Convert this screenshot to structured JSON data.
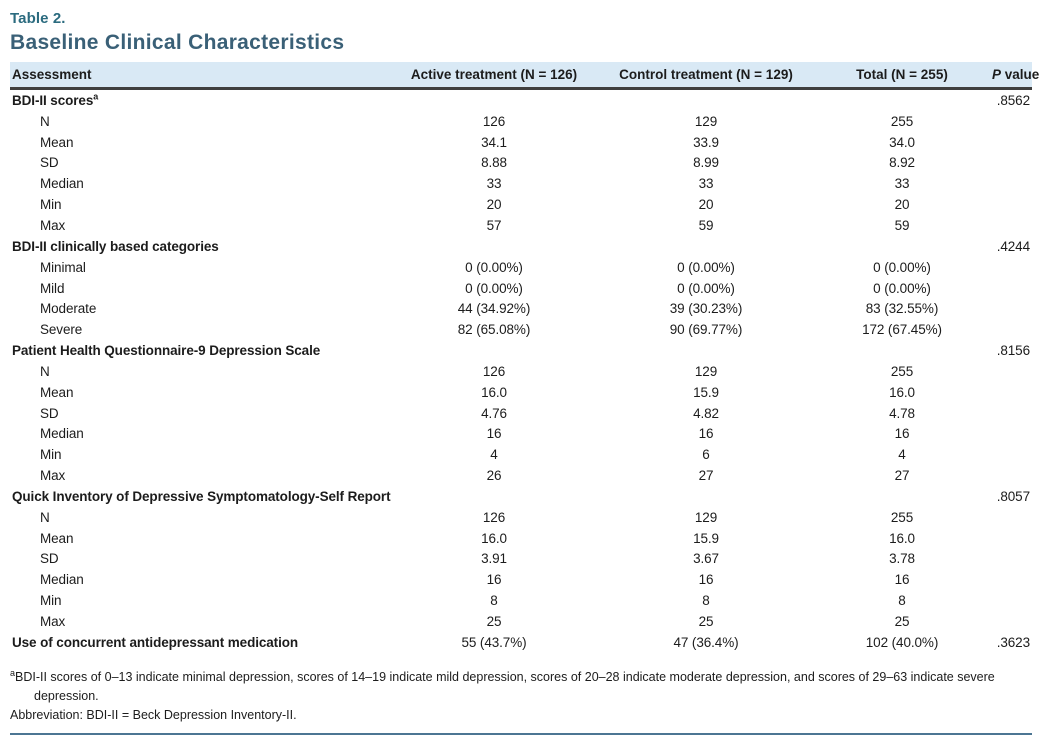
{
  "page": {
    "table_label": "Table 2.",
    "title": "Baseline Clinical Characteristics"
  },
  "table": {
    "header": {
      "assessment": "Assessment",
      "active": "Active treatment (N = 126)",
      "control": "Control treatment (N = 129)",
      "total": "Total (N = 255)",
      "p_italic": "P",
      "p_rest": " value"
    },
    "sections": [
      {
        "label": "BDI-II scores",
        "sup": "a",
        "p_value": ".8562",
        "rows": [
          {
            "label": "N",
            "values": [
              "126",
              "129",
              "255"
            ]
          },
          {
            "label": "Mean",
            "values": [
              "34.1",
              "33.9",
              "34.0"
            ]
          },
          {
            "label": "SD",
            "values": [
              "8.88",
              "8.99",
              "8.92"
            ]
          },
          {
            "label": "Median",
            "values": [
              "33",
              "33",
              "33"
            ]
          },
          {
            "label": "Min",
            "values": [
              "20",
              "20",
              "20"
            ]
          },
          {
            "label": "Max",
            "values": [
              "57",
              "59",
              "59"
            ]
          }
        ]
      },
      {
        "label": "BDI-II clinically based categories",
        "sup": "",
        "p_value": ".4244",
        "rows": [
          {
            "label": "Minimal",
            "values": [
              "0 (0.00%)",
              "0 (0.00%)",
              "0 (0.00%)"
            ]
          },
          {
            "label": "Mild",
            "values": [
              "0 (0.00%)",
              "0 (0.00%)",
              "0 (0.00%)"
            ]
          },
          {
            "label": "Moderate",
            "values": [
              "44 (34.92%)",
              "39 (30.23%)",
              "83 (32.55%)"
            ]
          },
          {
            "label": "Severe",
            "values": [
              "82 (65.08%)",
              "90 (69.77%)",
              "172 (67.45%)"
            ]
          }
        ]
      },
      {
        "label": "Patient Health Questionnaire-9 Depression Scale",
        "sup": "",
        "p_value": ".8156",
        "rows": [
          {
            "label": "N",
            "values": [
              "126",
              "129",
              "255"
            ]
          },
          {
            "label": "Mean",
            "values": [
              "16.0",
              "15.9",
              "16.0"
            ]
          },
          {
            "label": "SD",
            "values": [
              "4.76",
              "4.82",
              "4.78"
            ]
          },
          {
            "label": "Median",
            "values": [
              "16",
              "16",
              "16"
            ]
          },
          {
            "label": "Min",
            "values": [
              "4",
              "6",
              "4"
            ]
          },
          {
            "label": "Max",
            "values": [
              "26",
              "27",
              "27"
            ]
          }
        ]
      },
      {
        "label": "Quick Inventory of Depressive Symptomatology-Self Report",
        "sup": "",
        "p_value": ".8057",
        "rows": [
          {
            "label": "N",
            "values": [
              "126",
              "129",
              "255"
            ]
          },
          {
            "label": "Mean",
            "values": [
              "16.0",
              "15.9",
              "16.0"
            ]
          },
          {
            "label": "SD",
            "values": [
              "3.91",
              "3.67",
              "3.78"
            ]
          },
          {
            "label": "Median",
            "values": [
              "16",
              "16",
              "16"
            ]
          },
          {
            "label": "Min",
            "values": [
              "8",
              "8",
              "8"
            ]
          },
          {
            "label": "Max",
            "values": [
              "25",
              "25",
              "25"
            ]
          }
        ]
      },
      {
        "label": "Use of concurrent antidepressant medication",
        "sup": "",
        "p_value": ".3623",
        "values": [
          "55 (43.7%)",
          "47 (36.4%)",
          "102 (40.0%)"
        ],
        "rows": []
      }
    ]
  },
  "footnotes": {
    "a_sup": "a",
    "a_text": "BDI-II scores of 0–13 indicate minimal depression, scores of 14–19 indicate mild depression, scores of 20–28 indicate moderate depression, and scores of 29–63 indicate severe depression.",
    "abbreviation": "Abbreviation: BDI-II = Beck Depression Inventory-II."
  },
  "colors": {
    "accent_teal": "#2b6b7f",
    "title_blue": "#3a6077",
    "header_bg": "#d9e9f5",
    "header_rule": "#3f3f3f",
    "bottom_rule": "#4c7693",
    "body_text": "#1c1c1c"
  }
}
